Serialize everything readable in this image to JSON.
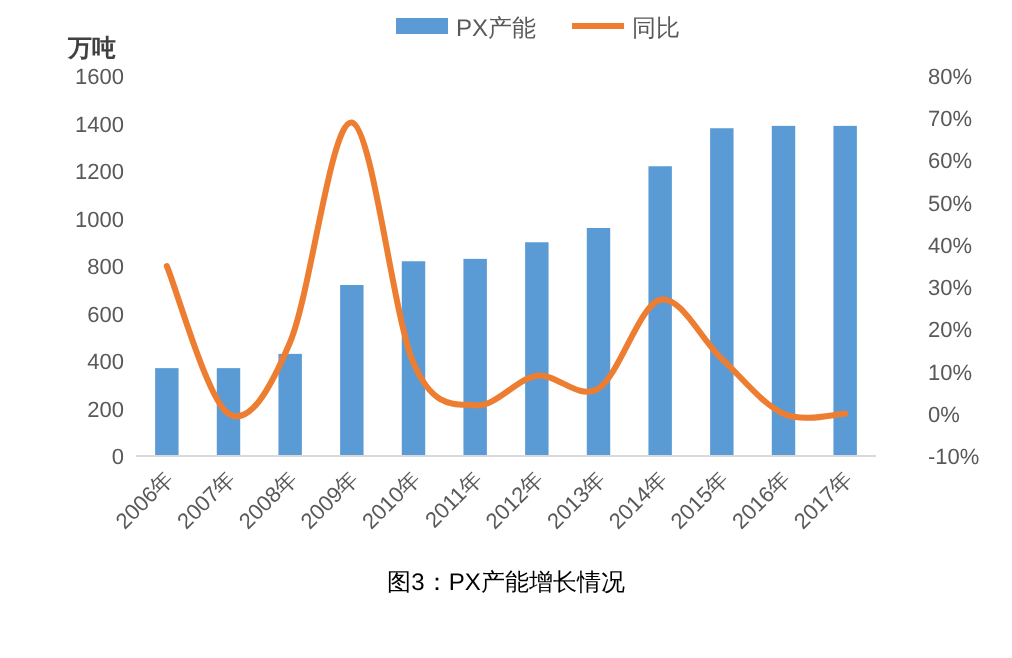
{
  "chart_data": {
    "type": "bar",
    "title": "图3：PX产能增长情况",
    "ylabel": "万吨",
    "categories": [
      "2006年",
      "2007年",
      "2008年",
      "2009年",
      "2010年",
      "2011年",
      "2012年",
      "2013年",
      "2014年",
      "2015年",
      "2016年",
      "2017年"
    ],
    "series": [
      {
        "name": "PX产能",
        "color": "#5b9bd5",
        "values": [
          370,
          370,
          430,
          720,
          820,
          830,
          900,
          960,
          1220,
          1380,
          1390,
          1390
        ]
      },
      {
        "name": "同比",
        "type": "line",
        "axis": "y2",
        "color": "#ed7d31",
        "values": [
          35,
          0,
          17,
          69,
          12,
          2,
          9,
          6,
          27,
          13,
          0,
          0
        ]
      }
    ],
    "ylim": [
      0,
      1600
    ],
    "yticks": [
      0,
      200,
      400,
      600,
      800,
      1000,
      1200,
      1400,
      1600
    ],
    "y2lim": [
      -10,
      80
    ],
    "y2ticks": [
      {
        "value": -10,
        "label": "-10%"
      },
      {
        "value": 0,
        "label": "0%"
      },
      {
        "value": 10,
        "label": "10%"
      },
      {
        "value": 20,
        "label": "20%"
      },
      {
        "value": 30,
        "label": "30%"
      },
      {
        "value": 40,
        "label": "40%"
      },
      {
        "value": 50,
        "label": "50%"
      },
      {
        "value": 60,
        "label": "60%"
      },
      {
        "value": 70,
        "label": "70%"
      },
      {
        "value": 80,
        "label": "80%"
      }
    ],
    "grid": false,
    "legend": "top",
    "marker": "none",
    "line_style": "solid"
  }
}
